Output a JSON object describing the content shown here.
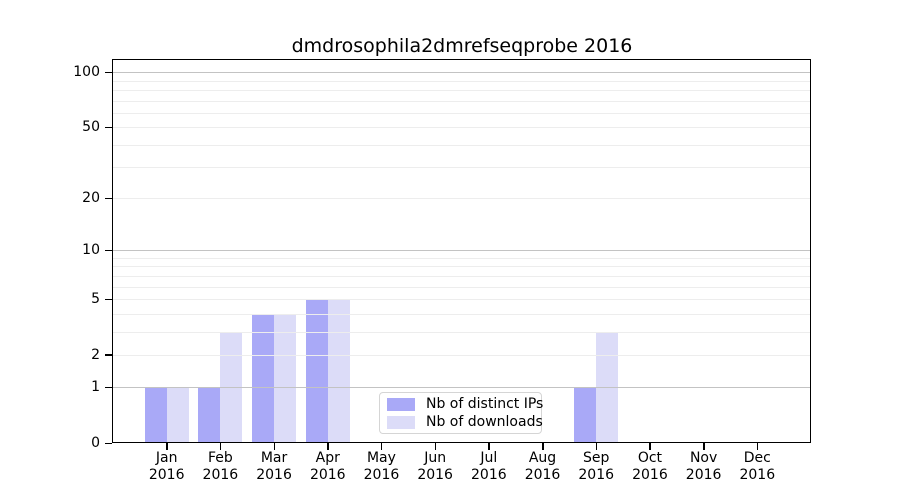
{
  "chart_data": {
    "type": "bar",
    "title": "dmdrosophila2dmrefseqprobe 2016",
    "categories": [
      "Jan",
      "Feb",
      "Mar",
      "Apr",
      "May",
      "Jun",
      "Jul",
      "Aug",
      "Sep",
      "Oct",
      "Nov",
      "Dec"
    ],
    "year": "2016",
    "series": [
      {
        "name": "Nb of distinct IPs",
        "color": "#a9a9f7",
        "values": [
          1,
          1,
          4,
          5,
          0,
          0,
          0,
          0,
          1,
          0,
          0,
          0
        ]
      },
      {
        "name": "Nb of downloads",
        "color": "#dcdcf8",
        "values": [
          1,
          3,
          4,
          5,
          0,
          0,
          0,
          0,
          3,
          0,
          0,
          0
        ]
      }
    ],
    "xlabel": "",
    "ylabel": "",
    "yscale": "log1p",
    "ylim": [
      0,
      120
    ],
    "yticks": [
      0,
      1,
      2,
      5,
      10,
      20,
      50,
      100
    ],
    "major_gridlines": [
      1,
      10,
      100
    ],
    "minor_gridlines": [
      2,
      3,
      4,
      5,
      6,
      7,
      8,
      9,
      20,
      30,
      40,
      50,
      60,
      70,
      80,
      90
    ],
    "grid": true,
    "legend_position": "lower center-left inside plot",
    "colors": {
      "axis": "#000000",
      "major_grid": "#c3c3c3",
      "minor_grid": "#ededed",
      "background": "#ffffff"
    }
  }
}
